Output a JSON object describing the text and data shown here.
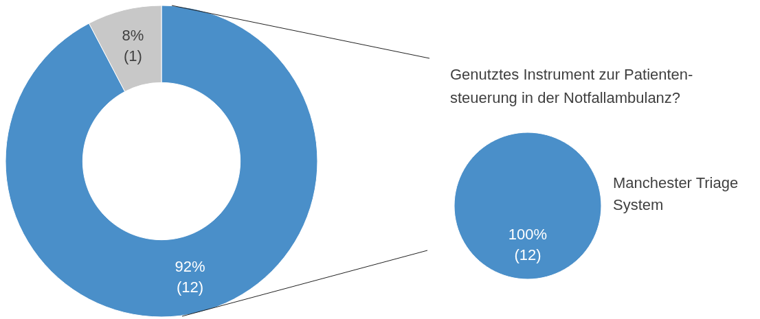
{
  "chart_data": [
    {
      "type": "donut",
      "categories": [
        null,
        null
      ],
      "values": [
        12,
        1
      ],
      "colors": [
        "#4a8fc9",
        "#c8c8c8"
      ],
      "value_labels": [
        "92%\n(12)",
        "8%\n(1)"
      ]
    },
    {
      "type": "pie",
      "title": "Genutztes Instrument zur Patienten-\nsteuerung in der Notfallambulanz?",
      "categories": [
        "Manchester Triage System"
      ],
      "values": [
        12
      ],
      "colors": [
        "#4a8fc9"
      ],
      "value_labels": [
        "100%\n(12)"
      ]
    }
  ]
}
